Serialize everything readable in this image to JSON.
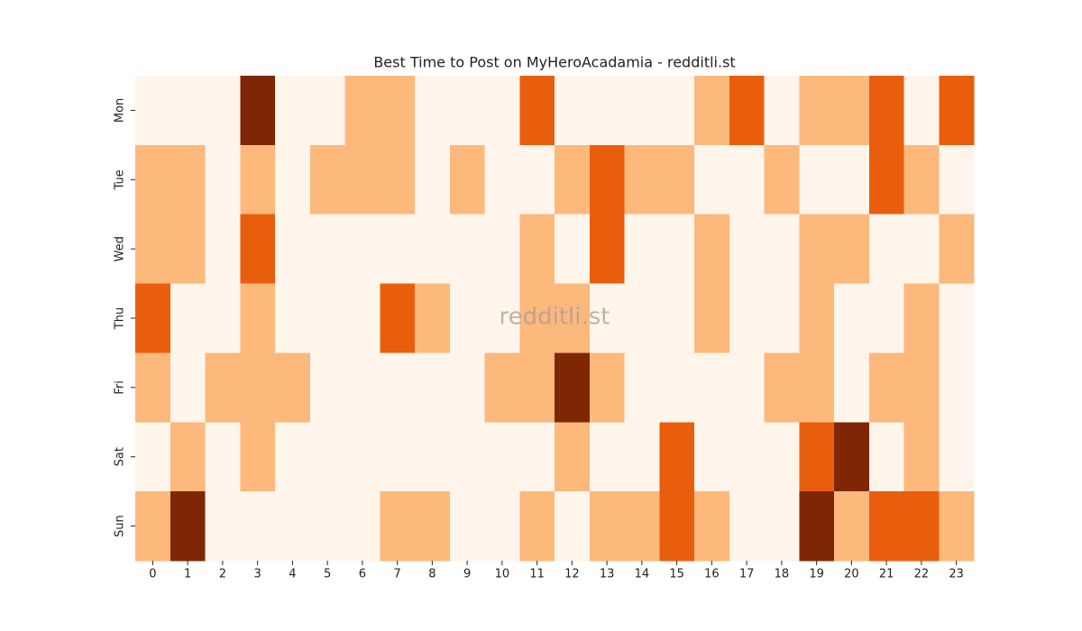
{
  "chart_data": {
    "type": "heatmap",
    "title": "Best Time to Post on MyHeroAcadamia - redditli.st",
    "watermark": "redditli.st",
    "x": [
      "0",
      "1",
      "2",
      "3",
      "4",
      "5",
      "6",
      "7",
      "8",
      "9",
      "10",
      "11",
      "12",
      "13",
      "14",
      "15",
      "16",
      "17",
      "18",
      "19",
      "20",
      "21",
      "22",
      "23"
    ],
    "categories": [
      "Mon",
      "Tue",
      "Wed",
      "Thu",
      "Fri",
      "Sat",
      "Sun"
    ],
    "values": [
      [
        0,
        0,
        0,
        3,
        0,
        0,
        1,
        1,
        0,
        0,
        0,
        2,
        0,
        0,
        0,
        0,
        1,
        2,
        0,
        1,
        1,
        2,
        0,
        2
      ],
      [
        1,
        1,
        0,
        1,
        0,
        1,
        1,
        1,
        0,
        1,
        0,
        0,
        1,
        2,
        1,
        1,
        0,
        0,
        1,
        0,
        0,
        2,
        1,
        0
      ],
      [
        1,
        1,
        0,
        2,
        0,
        0,
        0,
        0,
        0,
        0,
        0,
        1,
        0,
        2,
        0,
        0,
        1,
        0,
        0,
        1,
        1,
        0,
        0,
        1
      ],
      [
        2,
        0,
        0,
        1,
        0,
        0,
        0,
        2,
        1,
        0,
        0,
        1,
        1,
        0,
        0,
        0,
        1,
        0,
        0,
        1,
        0,
        0,
        1,
        0
      ],
      [
        1,
        0,
        1,
        1,
        1,
        0,
        0,
        0,
        0,
        0,
        1,
        1,
        3,
        1,
        0,
        0,
        0,
        0,
        1,
        1,
        0,
        1,
        1,
        0
      ],
      [
        0,
        1,
        0,
        1,
        0,
        0,
        0,
        0,
        0,
        0,
        0,
        0,
        1,
        0,
        0,
        2,
        0,
        0,
        0,
        2,
        3,
        0,
        1,
        0
      ],
      [
        1,
        3,
        0,
        0,
        0,
        0,
        0,
        1,
        1,
        0,
        0,
        1,
        0,
        1,
        1,
        2,
        1,
        0,
        0,
        3,
        1,
        2,
        2,
        1
      ]
    ],
    "colors": [
      "#fff5eb",
      "#fdb87c",
      "#e95e0d",
      "#7f2704"
    ]
  }
}
